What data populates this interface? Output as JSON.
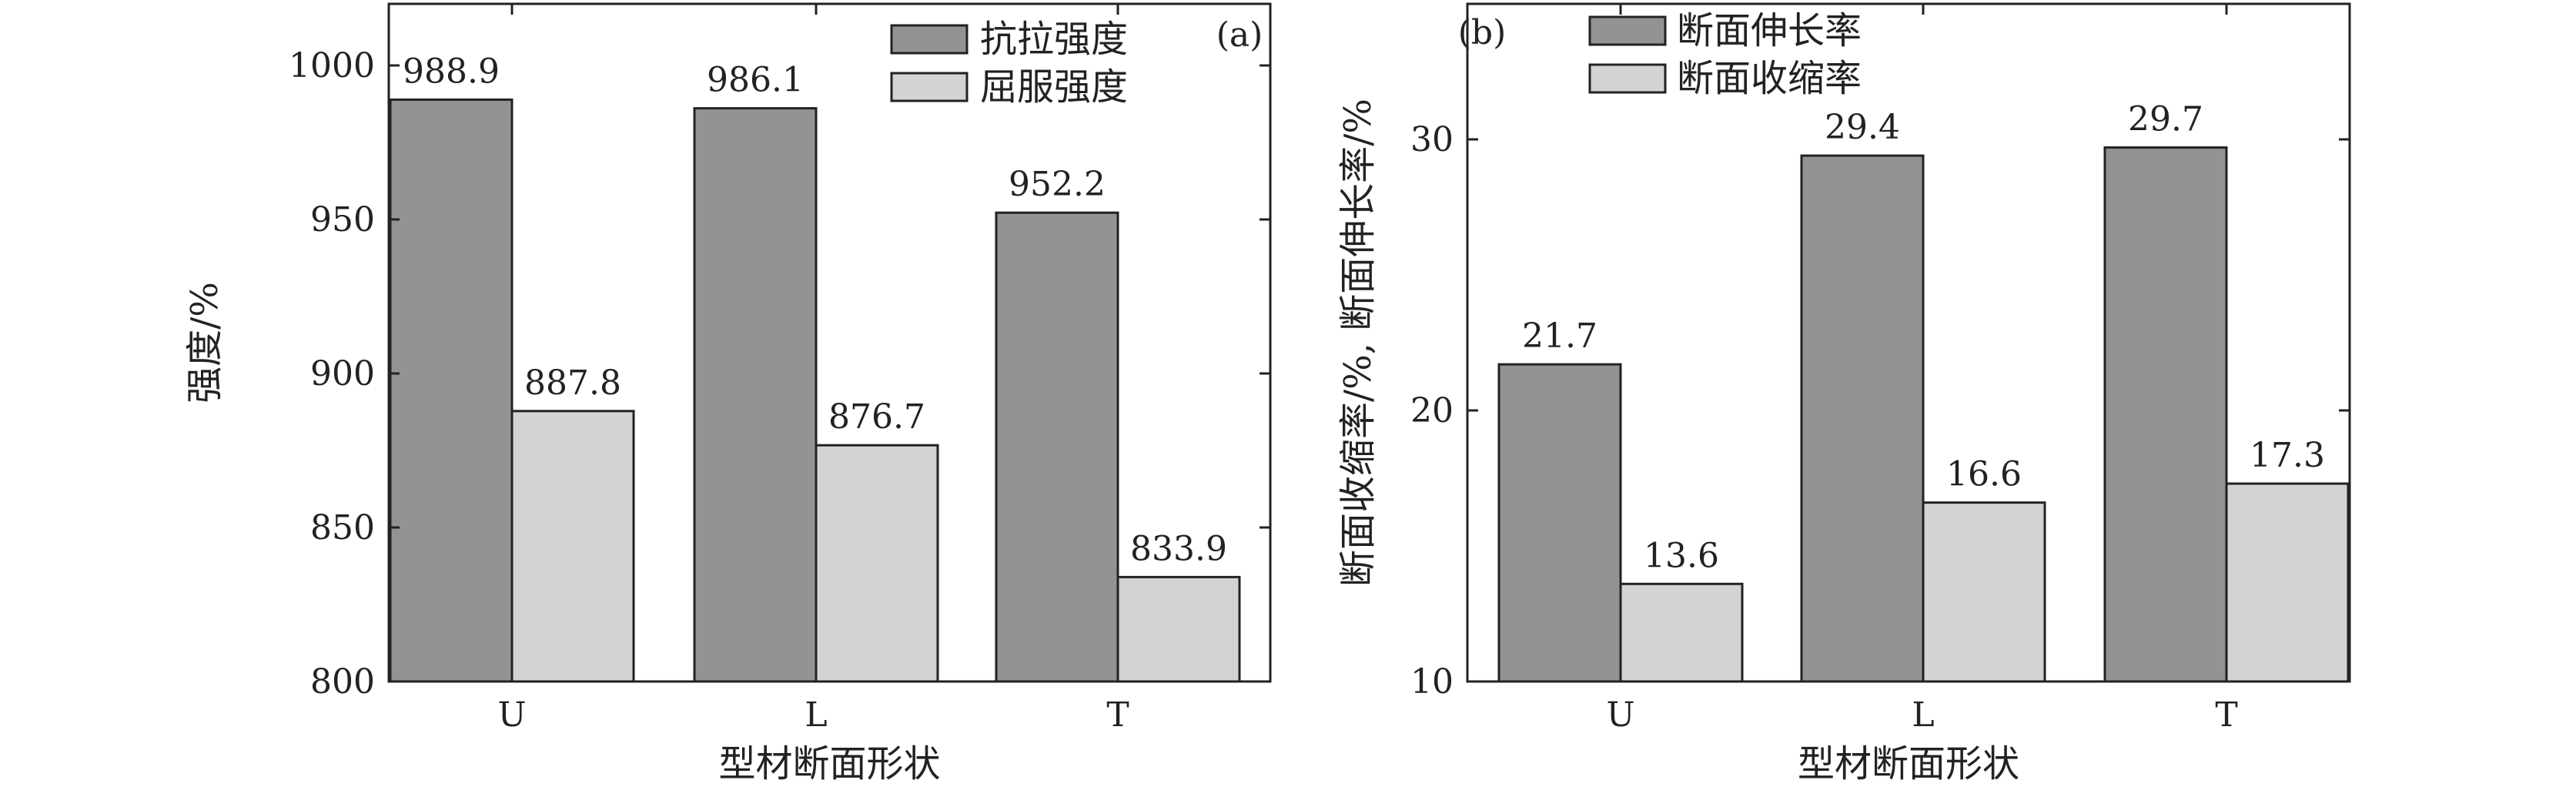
{
  "colors": {
    "dark_bar": "#939393",
    "light_bar": "#d3d3d3",
    "bar_stroke": "#222222",
    "axis": "#222222"
  },
  "chart_data": [
    {
      "type": "bar",
      "panel_label": "(a)",
      "categories": [
        "U",
        "L",
        "T"
      ],
      "series": [
        {
          "name": "抗拉强度",
          "values": [
            988.9,
            986.1,
            952.2
          ],
          "labels": [
            "988.9",
            "986.1",
            "952.2"
          ],
          "color": "#939393"
        },
        {
          "name": "屈服强度",
          "values": [
            887.8,
            876.7,
            833.9
          ],
          "labels": [
            "887.8",
            "876.7",
            "833.9"
          ],
          "color": "#d3d3d3"
        }
      ],
      "xlabel": "型材断面形状",
      "ylabel": "强度/%",
      "ylim": [
        800,
        1020
      ],
      "yticks": [
        800,
        850,
        900,
        950,
        1000
      ],
      "ytick_labels": [
        "800",
        "850",
        "900",
        "950",
        "1000"
      ],
      "grid": false,
      "legend_position": "top-right"
    },
    {
      "type": "bar",
      "panel_label": "(b)",
      "categories": [
        "U",
        "L",
        "T"
      ],
      "series": [
        {
          "name": "断面伸长率",
          "values": [
            21.7,
            29.4,
            29.7
          ],
          "labels": [
            "21.7",
            "29.4",
            "29.7"
          ],
          "color": "#939393"
        },
        {
          "name": "断面收缩率",
          "values": [
            13.6,
            16.6,
            17.3
          ],
          "labels": [
            "13.6",
            "16.6",
            "17.3"
          ],
          "color": "#d3d3d3"
        }
      ],
      "xlabel": "型材断面形状",
      "ylabel": "断面收缩率/%, 断面伸长率/%",
      "ylim": [
        10,
        35
      ],
      "yticks": [
        10,
        20,
        30
      ],
      "ytick_labels": [
        "10",
        "20",
        "30"
      ],
      "grid": false,
      "legend_position": "top-left"
    }
  ]
}
